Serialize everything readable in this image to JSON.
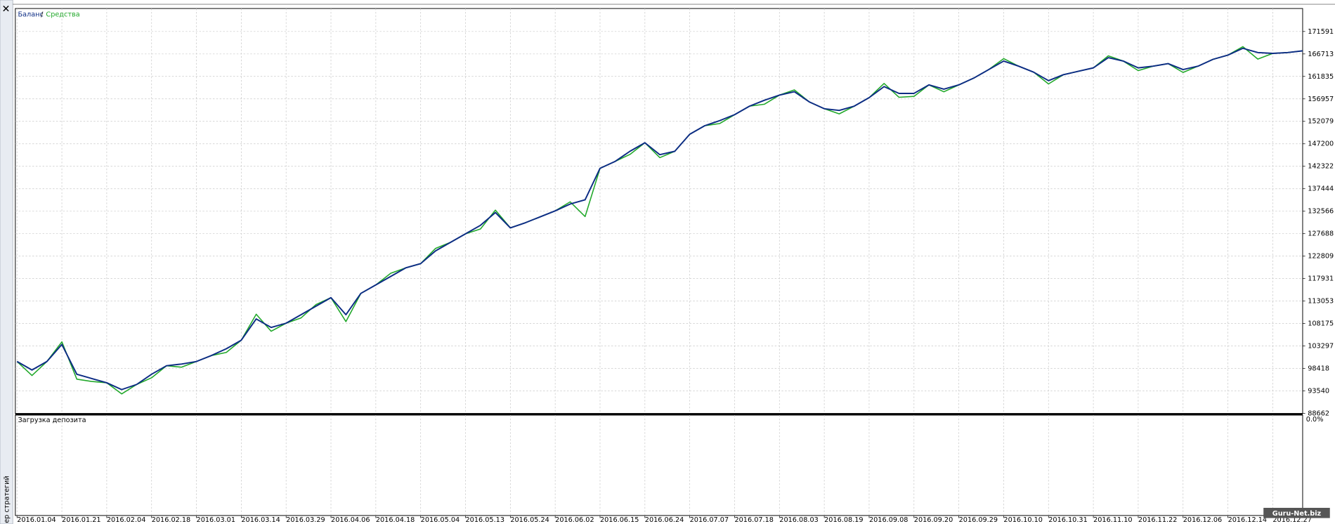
{
  "chart_data": {
    "type": "line",
    "side_label": "ер стратегий",
    "legend_separator": "/",
    "watermark": "Guru-Net.biz",
    "categories": [
      "2016.01.04",
      null,
      null,
      "2016.01.21",
      null,
      null,
      "2016.02.04",
      null,
      null,
      "2016.02.18",
      null,
      null,
      "2016.03.01",
      null,
      null,
      "2016.03.14",
      null,
      null,
      "2016.03.29",
      null,
      null,
      "2016.04.06",
      null,
      null,
      "2016.04.18",
      null,
      null,
      "2016.05.04",
      null,
      null,
      "2016.05.13",
      null,
      null,
      "2016.05.24",
      null,
      null,
      "2016.06.02",
      null,
      null,
      "2016.06.15",
      null,
      null,
      "2016.06.24",
      null,
      null,
      "2016.07.07",
      null,
      null,
      "2016.07.18",
      null,
      null,
      "2016.08.03",
      null,
      null,
      "2016.08.19",
      null,
      null,
      "2016.09.08",
      null,
      null,
      "2016.09.20",
      null,
      null,
      "2016.09.29",
      null,
      null,
      "2016.10.10",
      null,
      null,
      "2016.10.31",
      null,
      null,
      "2016.11.10",
      null,
      null,
      "2016.11.22",
      null,
      null,
      "2016.12.06",
      null,
      null,
      "2016.12.14",
      null,
      null,
      "2016.12.27",
      null,
      null
    ],
    "series": [
      {
        "name": "Баланс",
        "color": "#0c2c84",
        "values": [
          99935,
          98087,
          99935,
          103631,
          97163,
          96239,
          95315,
          93836,
          94945,
          97163,
          99011,
          99380,
          99935,
          101228,
          102707,
          104555,
          109175,
          107327,
          108251,
          110099,
          111947,
          113795,
          110099,
          114719,
          116567,
          118415,
          120263,
          121187,
          123959,
          125807,
          127655,
          129503,
          132275,
          128948,
          130057,
          131351,
          132644,
          134123,
          135047,
          141884,
          143363,
          145580,
          147428,
          144841,
          145580,
          149276,
          151124,
          152233,
          153527,
          155375,
          156668,
          157777,
          158516,
          156299,
          154820,
          154451,
          155375,
          157223,
          159625,
          158147,
          158147,
          159995,
          159071,
          159995,
          161473,
          163321,
          165169,
          164060,
          162767,
          160919,
          162212,
          162952,
          163691,
          165908,
          165169,
          163691,
          164060,
          164615,
          163321,
          164060,
          165539,
          166463,
          167941,
          167017,
          166832,
          167017,
          167387
        ]
      },
      {
        "name": "Средства",
        "color": "#21a82a",
        "values": [
          99935,
          96900,
          99935,
          104200,
          96100,
          95600,
          95315,
          92900,
          94945,
          96400,
          99011,
          98700,
          99935,
          101228,
          101900,
          104555,
          110200,
          106500,
          108251,
          109400,
          112300,
          113795,
          108600,
          114719,
          116567,
          119100,
          120263,
          121187,
          124500,
          125807,
          127655,
          128700,
          132800,
          128948,
          130057,
          131351,
          132644,
          134600,
          131400,
          141884,
          143363,
          144900,
          147428,
          144200,
          145580,
          149276,
          151124,
          151600,
          153527,
          155375,
          155800,
          157777,
          158900,
          156299,
          154820,
          153700,
          155375,
          157223,
          160300,
          157300,
          157500,
          159995,
          158500,
          159995,
          161473,
          163321,
          165700,
          164060,
          162767,
          160200,
          162212,
          162952,
          163691,
          166300,
          165169,
          163100,
          164060,
          164615,
          162700,
          164060,
          165539,
          166463,
          168300,
          165600,
          166832,
          167017,
          167387
        ]
      }
    ],
    "ylim": [
      88662,
      176580
    ],
    "yticks": [
      88662,
      93540,
      98418,
      103297,
      108175,
      113053,
      117931,
      122809,
      127688,
      132566,
      137444,
      142322,
      147200,
      152079,
      156957,
      161835,
      166713,
      171591
    ],
    "grid": true,
    "load_panel": {
      "title": "Загрузка депозита",
      "yticks": [
        {
          "value": 0,
          "label": "0.0%"
        }
      ]
    }
  }
}
